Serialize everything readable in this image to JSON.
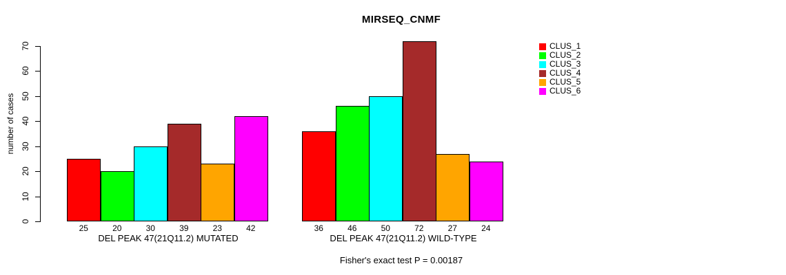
{
  "chart_data": {
    "type": "bar",
    "title": "MIRSEQ_CNMF",
    "ylabel": "number of cases",
    "ylim": [
      0,
      70
    ],
    "yticks": [
      0,
      10,
      20,
      30,
      40,
      50,
      60,
      70
    ],
    "grid": false,
    "legend_position": "right",
    "series_colors": [
      "#ff0000",
      "#00ff00",
      "#00ffff",
      "#a52a2a",
      "#ffa500",
      "#ff00ff"
    ],
    "groups": [
      {
        "label": "DEL PEAK 47(21Q11.2) MUTATED",
        "values": [
          25,
          20,
          30,
          39,
          23,
          42
        ]
      },
      {
        "label": "DEL PEAK 47(21Q11.2) WILD-TYPE",
        "values": [
          36,
          46,
          50,
          72,
          27,
          24
        ]
      }
    ],
    "legend": [
      {
        "label": "CLUS_1",
        "color": "#ff0000"
      },
      {
        "label": "CLUS_2",
        "color": "#00ff00"
      },
      {
        "label": "CLUS_3",
        "color": "#00ffff"
      },
      {
        "label": "CLUS_4",
        "color": "#a52a2a"
      },
      {
        "label": "CLUS_5",
        "color": "#ffa500"
      },
      {
        "label": "CLUS_6",
        "color": "#ff00ff"
      }
    ],
    "annotation": "Fisher's exact test P = 0.00187"
  }
}
